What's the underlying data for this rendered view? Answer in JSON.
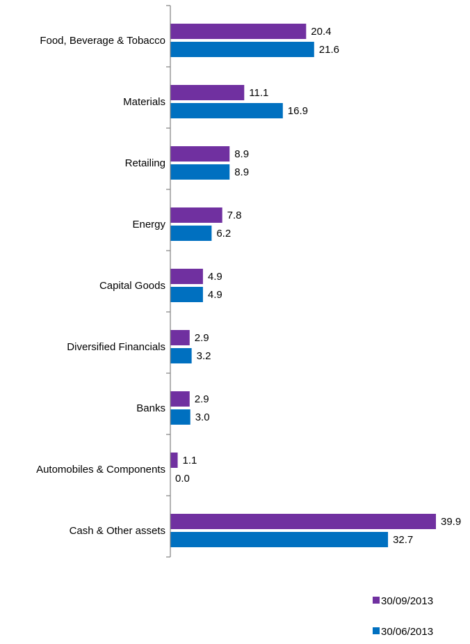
{
  "chart_data": {
    "type": "bar",
    "orientation": "horizontal",
    "categories": [
      "Food, Beverage & Tobacco",
      "Materials",
      "Retailing",
      "Energy",
      "Capital Goods",
      "Diversified Financials",
      "Banks",
      "Automobiles & Components",
      "Cash & Other assets"
    ],
    "series": [
      {
        "name": "30/09/2013",
        "color": "#7030a0",
        "values": [
          20.4,
          11.1,
          8.9,
          7.8,
          4.9,
          2.9,
          2.9,
          1.1,
          39.9
        ],
        "labels": [
          "20.4",
          "11.1",
          "8.9",
          "7.8",
          "4.9",
          "2.9",
          "2.9",
          "1.1",
          "39.9"
        ]
      },
      {
        "name": "30/06/2013",
        "color": "#0070c0",
        "values": [
          21.6,
          16.9,
          8.9,
          6.2,
          4.9,
          3.2,
          3.0,
          0.0,
          32.7
        ],
        "labels": [
          "21.6",
          "16.9",
          "8.9",
          "6.2",
          "4.9",
          "3.2",
          "3.0",
          "0.0",
          "32.7"
        ]
      }
    ],
    "xlim": [
      0,
      40
    ],
    "data_labels": true,
    "grid": false,
    "legend_position": "bottom-right"
  }
}
